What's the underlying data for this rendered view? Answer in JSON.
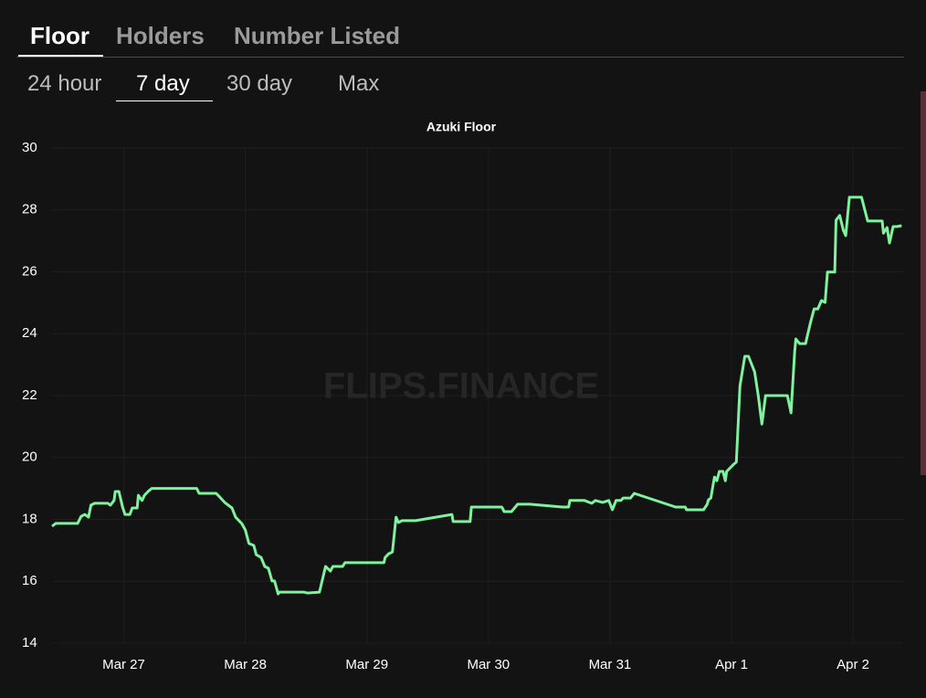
{
  "tabs": [
    "Floor",
    "Holders",
    "Number Listed"
  ],
  "periods": [
    "24 hour",
    "7 day",
    "30 day",
    "Max"
  ],
  "chart_data": {
    "type": "line",
    "title": "Azuki Floor",
    "watermark": "FLIPS.FINANCE",
    "color": "#7ef29d",
    "grid": true,
    "x": [
      -0.59,
      -0.56,
      -0.38,
      -0.35,
      -0.32,
      -0.29,
      -0.27,
      -0.24,
      -0.13,
      -0.11,
      -0.08,
      -0.07,
      -0.04,
      -0.01,
      0.01,
      0.05,
      0.07,
      0.11,
      0.12,
      0.15,
      0.17,
      0.2,
      0.23,
      0.6,
      0.62,
      0.76,
      0.79,
      0.83,
      0.89,
      0.92,
      0.97,
      1.0,
      1.03,
      1.07,
      1.09,
      1.13,
      1.16,
      1.19,
      1.22,
      1.24,
      1.27,
      1.28,
      1.48,
      1.51,
      1.61,
      1.66,
      1.7,
      1.72,
      1.8,
      1.82,
      2.14,
      2.15,
      2.18,
      2.21,
      2.24,
      2.26,
      2.29,
      2.4,
      2.7,
      2.71,
      2.85,
      2.86,
      3.11,
      3.13,
      3.19,
      3.24,
      3.34,
      3.61,
      3.66,
      3.67,
      3.79,
      3.85,
      3.88,
      3.94,
      3.99,
      4.02,
      4.05,
      4.09,
      4.11,
      4.17,
      4.2,
      4.54,
      4.62,
      4.63,
      4.77,
      4.8,
      4.81,
      4.83,
      4.85,
      4.86,
      4.88,
      4.9,
      4.93,
      4.95,
      4.96,
      5.02,
      5.04,
      5.07,
      5.11,
      5.14,
      5.19,
      5.22,
      5.25,
      5.28,
      5.46,
      5.49,
      5.52,
      5.53,
      5.56,
      5.61,
      5.62,
      5.65,
      5.68,
      5.71,
      5.74,
      5.77,
      5.79,
      5.85,
      5.86,
      5.89,
      5.92,
      5.94,
      5.97,
      6.07,
      6.12,
      6.24,
      6.25,
      6.28,
      6.3,
      6.33,
      6.36,
      6.4
    ],
    "values": [
      17.78,
      17.87,
      17.87,
      18.1,
      18.16,
      18.07,
      18.46,
      18.52,
      18.52,
      18.46,
      18.61,
      18.9,
      18.9,
      18.4,
      18.16,
      18.16,
      18.37,
      18.37,
      18.78,
      18.61,
      18.78,
      18.9,
      19.0,
      19.0,
      18.84,
      18.84,
      18.72,
      18.55,
      18.37,
      18.07,
      17.87,
      17.66,
      17.22,
      17.16,
      16.86,
      16.77,
      16.48,
      16.42,
      16.01,
      16.01,
      15.59,
      15.65,
      15.65,
      15.62,
      15.65,
      16.48,
      16.33,
      16.48,
      16.48,
      16.6,
      16.6,
      16.77,
      16.89,
      16.95,
      18.07,
      17.9,
      17.96,
      17.96,
      18.16,
      17.93,
      17.93,
      18.4,
      18.4,
      18.25,
      18.25,
      18.49,
      18.49,
      18.4,
      18.4,
      18.61,
      18.61,
      18.52,
      18.61,
      18.55,
      18.61,
      18.31,
      18.61,
      18.61,
      18.69,
      18.69,
      18.84,
      18.4,
      18.4,
      18.31,
      18.31,
      18.49,
      18.63,
      18.69,
      19.14,
      19.37,
      19.25,
      19.55,
      19.55,
      19.25,
      19.55,
      19.79,
      19.85,
      22.32,
      23.27,
      23.27,
      22.77,
      22.0,
      21.08,
      22.0,
      22.0,
      21.44,
      23.42,
      23.83,
      23.68,
      23.68,
      23.86,
      24.36,
      24.8,
      24.8,
      25.07,
      25.01,
      25.99,
      25.99,
      27.67,
      27.82,
      27.34,
      27.17,
      28.41,
      28.41,
      27.64,
      27.64,
      27.25,
      27.43,
      26.93,
      27.46,
      27.46,
      27.49
    ],
    "xlim": [
      -0.59,
      6.42
    ],
    "xticks": [
      {
        "value": 0,
        "label": "Mar 27"
      },
      {
        "value": 1,
        "label": "Mar 28"
      },
      {
        "value": 2,
        "label": "Mar 29"
      },
      {
        "value": 3,
        "label": "Mar 30"
      },
      {
        "value": 4,
        "label": "Mar 31"
      },
      {
        "value": 5,
        "label": "Apr 1"
      },
      {
        "value": 6,
        "label": "Apr 2"
      }
    ],
    "ylim": [
      14,
      30
    ],
    "yticks": [
      14,
      16,
      18,
      20,
      22,
      24,
      26,
      28,
      30
    ]
  }
}
